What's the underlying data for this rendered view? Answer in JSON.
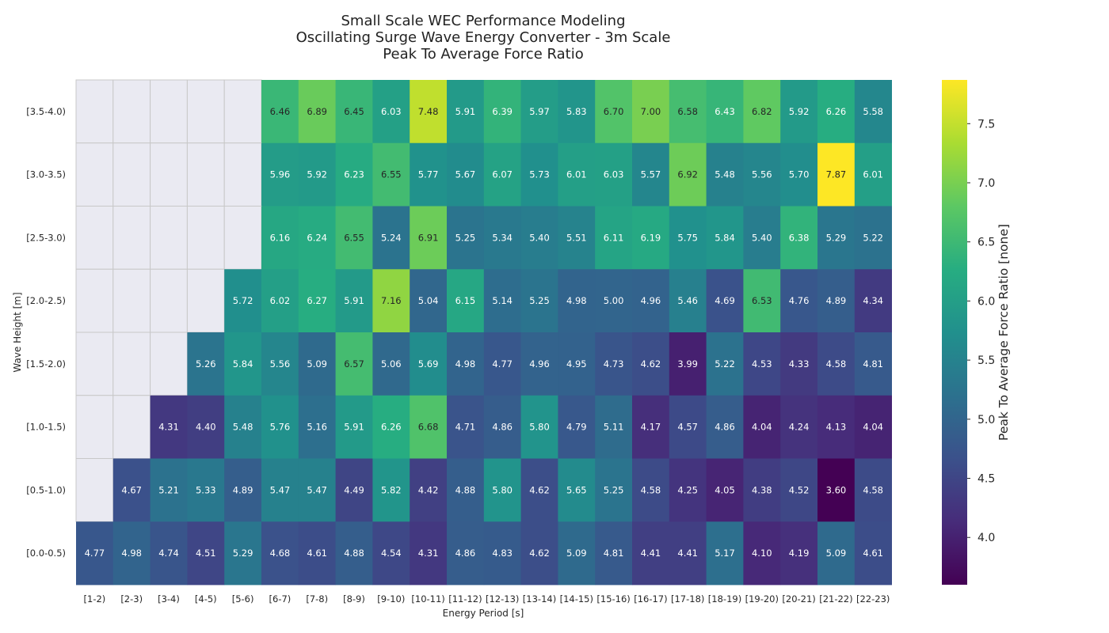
{
  "chart_data": {
    "type": "heatmap",
    "title": [
      "Small Scale WEC Performance Modeling",
      "Oscillating Surge Wave Energy Converter - 3m Scale",
      "Peak To Average Force Ratio"
    ],
    "xlabel": "Energy Period [s]",
    "ylabel": "Wave Height [m]",
    "colorbar_label": "Peak To Average Force Ratio [none]",
    "colormap": "viridis",
    "value_range": [
      3.6,
      7.87
    ],
    "colorbar_ticks": [
      "4.0",
      "4.5",
      "5.0",
      "5.5",
      "6.0",
      "6.5",
      "7.0",
      "7.5"
    ],
    "x_categories": [
      "[1-2)",
      "[2-3)",
      "[3-4)",
      "[4-5)",
      "[5-6)",
      "[6-7)",
      "[7-8)",
      "[8-9)",
      "[9-10)",
      "[10-11)",
      "[11-12)",
      "[12-13)",
      "[13-14)",
      "[14-15)",
      "[15-16)",
      "[16-17)",
      "[17-18)",
      "[18-19)",
      "[19-20)",
      "[20-21)",
      "[21-22)",
      "[22-23)"
    ],
    "y_categories": [
      "[3.5-4.0)",
      "[3.0-3.5)",
      "[2.5-3.0)",
      "[2.0-2.5)",
      "[1.5-2.0)",
      "[1.0-1.5)",
      "[0.5-1.0)",
      "[0.0-0.5)"
    ],
    "values": [
      [
        null,
        null,
        null,
        null,
        null,
        6.46,
        6.89,
        6.45,
        6.03,
        7.48,
        5.91,
        6.39,
        5.97,
        5.83,
        6.7,
        7.0,
        6.58,
        6.43,
        6.82,
        5.92,
        6.26,
        5.58
      ],
      [
        null,
        null,
        null,
        null,
        null,
        5.96,
        5.92,
        6.23,
        6.55,
        5.77,
        5.67,
        6.07,
        5.73,
        6.01,
        6.03,
        5.57,
        6.92,
        5.48,
        5.56,
        5.7,
        7.87,
        6.01
      ],
      [
        null,
        null,
        null,
        null,
        null,
        6.16,
        6.24,
        6.55,
        5.24,
        6.91,
        5.25,
        5.34,
        5.4,
        5.51,
        6.11,
        6.19,
        5.75,
        5.84,
        5.4,
        6.38,
        5.29,
        5.22
      ],
      [
        null,
        null,
        null,
        null,
        5.72,
        6.02,
        6.27,
        5.91,
        7.16,
        5.04,
        6.15,
        5.14,
        5.25,
        4.98,
        5.0,
        4.96,
        5.46,
        4.69,
        6.53,
        4.76,
        4.89,
        4.34
      ],
      [
        null,
        null,
        null,
        5.26,
        5.84,
        5.56,
        5.09,
        6.57,
        5.06,
        5.69,
        4.98,
        4.77,
        4.96,
        4.95,
        4.73,
        4.62,
        3.99,
        5.22,
        4.53,
        4.33,
        4.58,
        4.81
      ],
      [
        null,
        null,
        4.31,
        4.4,
        5.48,
        5.76,
        5.16,
        5.91,
        6.26,
        6.68,
        4.71,
        4.86,
        5.8,
        4.79,
        5.11,
        4.17,
        4.57,
        4.86,
        4.04,
        4.24,
        4.13,
        4.04
      ],
      [
        null,
        4.67,
        5.21,
        5.33,
        4.89,
        5.47,
        5.47,
        4.49,
        5.82,
        4.42,
        4.88,
        5.8,
        4.62,
        5.65,
        5.25,
        4.58,
        4.25,
        4.05,
        4.38,
        4.52,
        3.6,
        4.58
      ],
      [
        4.77,
        4.98,
        4.74,
        4.51,
        5.29,
        4.68,
        4.61,
        4.88,
        4.54,
        4.31,
        4.86,
        4.83,
        4.62,
        5.09,
        4.81,
        4.41,
        4.41,
        5.17,
        4.1,
        4.19,
        5.09,
        4.61
      ]
    ],
    "missing_cell_color": "#eaeaf2"
  }
}
